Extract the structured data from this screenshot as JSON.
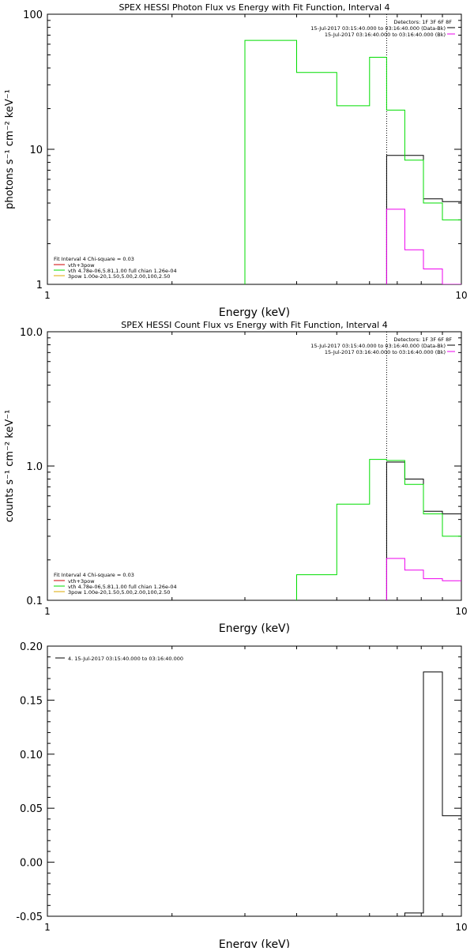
{
  "chart_data": [
    {
      "type": "line",
      "title": "SPEX HESSI Photon Flux vs Energy with Fit Function, Interval 4",
      "xlabel": "Energy (keV)",
      "ylabel": "photons s⁻¹ cm⁻² keV⁻¹",
      "xscale": "log",
      "yscale": "log",
      "xlim": [
        1,
        10
      ],
      "ylim": [
        1,
        100
      ],
      "xticks": [
        {
          "v": 1,
          "label": "1"
        },
        {
          "v": 10,
          "label": "10"
        }
      ],
      "yticks": [
        {
          "v": 1,
          "label": "1"
        },
        {
          "v": 10,
          "label": "10"
        },
        {
          "v": 100,
          "label": "100"
        }
      ],
      "fit_energy": 6.6,
      "series": [
        {
          "name": "vth+3pow",
          "color": "#cc0000",
          "edges": [],
          "values": []
        },
        {
          "name": "Data-Bk",
          "color": "#000000",
          "edges": [
            6.6,
            7.3,
            8.1,
            9.0,
            10.0
          ],
          "values": [
            9.0,
            9.0,
            4.3,
            4.1
          ]
        },
        {
          "name": "vth",
          "color": "#00dd00",
          "edges": [
            3.0,
            4.0,
            5.0,
            6.0,
            6.6,
            7.3,
            8.1,
            9.0,
            10.0
          ],
          "values": [
            64,
            37,
            21,
            48,
            19.5,
            8.3,
            4.0,
            3.0
          ]
        },
        {
          "name": "Bk",
          "color": "#ee00ee",
          "edges": [
            6.6,
            7.3,
            8.1,
            9.0,
            10.0
          ],
          "values": [
            3.6,
            1.8,
            1.3,
            1.0
          ]
        }
      ],
      "legend_left": {
        "header": "Fit Interval 4   Chi-square = 0.03",
        "items": [
          {
            "label": "vth+3pow",
            "color": "#cc0000"
          },
          {
            "label": "vth 4.78e-06,5.81,1.00  full chian 1.26e-04",
            "color": "#00dd00"
          },
          {
            "label": "3pow 1.00e-20,1.50,5.00,2.00,100,2.50",
            "color": "#ddaa00"
          }
        ]
      },
      "legend_right": {
        "header": "Detectors: 1F 3F 6F 8F",
        "items": [
          {
            "label": "15-Jul-2017 03:15:40.000 to 03:16:40.000 (Data-Bk)",
            "color": "#000000"
          },
          {
            "label": "15-Jul-2017 03:16:40.000 to 03:16:40.000 (Bk)",
            "color": "#ee00ee"
          }
        ]
      }
    },
    {
      "type": "line",
      "title": "SPEX HESSI Count Flux vs Energy with Fit Function, Interval 4",
      "xlabel": "Energy (keV)",
      "ylabel": "counts s⁻¹ cm⁻² keV⁻¹",
      "xscale": "log",
      "yscale": "log",
      "xlim": [
        1,
        10
      ],
      "ylim": [
        0.1,
        10
      ],
      "xticks": [
        {
          "v": 1,
          "label": "1"
        },
        {
          "v": 10,
          "label": "10"
        }
      ],
      "yticks": [
        {
          "v": 0.1,
          "label": "0.1"
        },
        {
          "v": 1,
          "label": "1.0"
        },
        {
          "v": 10,
          "label": "10.0"
        }
      ],
      "fit_energy": 6.6,
      "series": [
        {
          "name": "vth+3pow",
          "color": "#cc0000",
          "edges": [],
          "values": []
        },
        {
          "name": "Data-Bk",
          "color": "#000000",
          "edges": [
            6.6,
            7.3,
            8.1,
            9.0,
            10.0
          ],
          "values": [
            1.07,
            0.8,
            0.46,
            0.44
          ]
        },
        {
          "name": "vth",
          "color": "#00dd00",
          "edges": [
            4.0,
            5.0,
            6.0,
            6.6,
            7.3,
            8.1,
            9.0,
            10.0
          ],
          "values": [
            0.155,
            0.52,
            1.12,
            1.1,
            0.73,
            0.44,
            0.3
          ]
        },
        {
          "name": "Bk",
          "color": "#ee00ee",
          "edges": [
            6.6,
            7.3,
            8.1,
            9.0,
            10.0
          ],
          "values": [
            0.205,
            0.168,
            0.145,
            0.14
          ]
        }
      ],
      "legend_left": {
        "header": "Fit Interval 4   Chi-square = 0.03",
        "items": [
          {
            "label": "vth+3pow",
            "color": "#cc0000"
          },
          {
            "label": "vth 4.78e-06,5.81,1.00  full chian 1.26e-04",
            "color": "#00dd00"
          },
          {
            "label": "3pow 1.00e-20,1.50,5.00,2.00,100,2.50",
            "color": "#ddaa00"
          }
        ]
      },
      "legend_right": {
        "header": "Detectors: 1F 3F 6F 8F",
        "items": [
          {
            "label": "15-Jul-2017 03:15:40.000 to 03:16:40.000 (Data-Bk)",
            "color": "#000000"
          },
          {
            "label": "15-Jul-2017 03:16:40.000 to 03:16:40.000 (Bk)",
            "color": "#ee00ee"
          }
        ]
      }
    },
    {
      "type": "line",
      "title": "",
      "xlabel": "Energy (keV)",
      "ylabel": "",
      "xscale": "log",
      "yscale": "linear",
      "xlim": [
        1,
        10
      ],
      "ylim": [
        -0.05,
        0.2
      ],
      "xticks": [
        {
          "v": 1,
          "label": "1"
        },
        {
          "v": 10,
          "label": "10"
        }
      ],
      "yticks": [
        {
          "v": -0.05,
          "label": "-0.05"
        },
        {
          "v": 0,
          "label": "0.00"
        },
        {
          "v": 0.05,
          "label": "0.05"
        },
        {
          "v": 0.1,
          "label": "0.10"
        },
        {
          "v": 0.15,
          "label": "0.15"
        },
        {
          "v": 0.2,
          "label": "0.20"
        }
      ],
      "series": [
        {
          "name": "4. 15-Jul-2017 03:15:40.000 to 03:16:40.000",
          "color": "#000000",
          "edges": [
            6.6,
            7.3,
            8.1,
            9.0,
            10.0
          ],
          "values": [
            -0.05,
            -0.047,
            0.176,
            0.043
          ]
        }
      ],
      "legend_left": {
        "header": "",
        "items": [
          {
            "label": "4. 15-Jul-2017 03:15:40.000 to 03:16:40.000",
            "color": "#000000"
          }
        ]
      }
    }
  ]
}
